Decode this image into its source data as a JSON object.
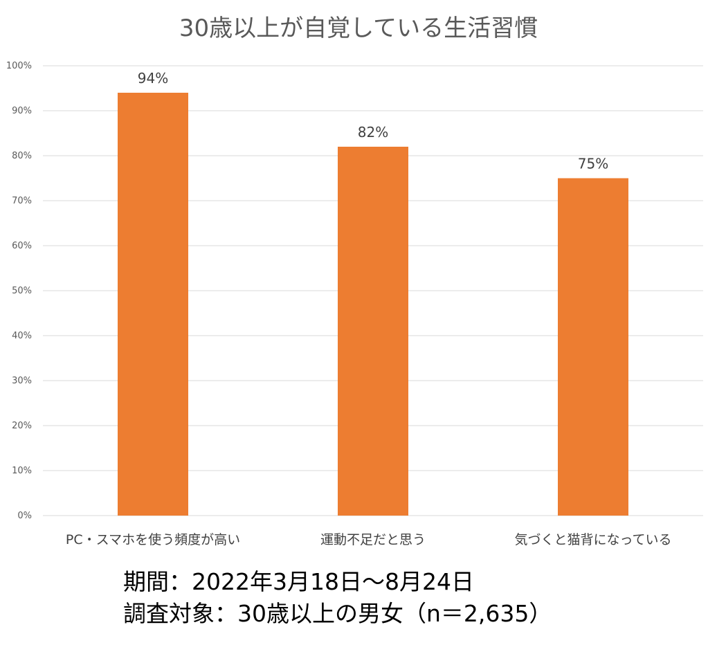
{
  "chart_data": {
    "type": "bar",
    "title": "30歳以上が自覚している生活習慣",
    "categories": [
      "PC・スマホを使う頻度が高い",
      "運動不足だと思う",
      "気づくと猫背になっている"
    ],
    "values": [
      94,
      82,
      75
    ],
    "data_labels": [
      "94%",
      "82%",
      "75%"
    ],
    "ylim": [
      0,
      100
    ],
    "yticks": [
      "0%",
      "10%",
      "20%",
      "30%",
      "40%",
      "50%",
      "60%",
      "70%",
      "80%",
      "90%",
      "100%"
    ],
    "grid": true,
    "bar_color": "#ED7D31",
    "grid_color": "#D9D9D9"
  },
  "notes": {
    "period": "期間：2022年3月18日～8月24日",
    "target": "調査対象：30歳以上の男女（n＝2,635）"
  }
}
